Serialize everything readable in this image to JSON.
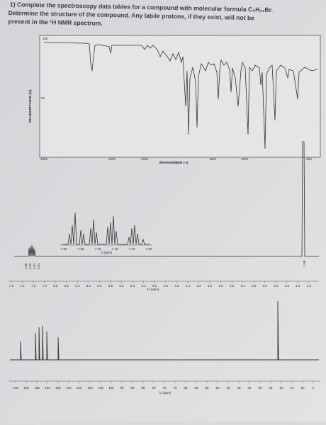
{
  "question": {
    "lines": [
      "1) Complete the spectroscopy data tables for a compound with molecular formula C₉H₁₁Br.",
      "Determine the structure of the compound. Any labile protons, if they exist, will not be",
      "present in the ¹H NMR spectrum."
    ]
  },
  "ir": {
    "y_label": "TRANSMITTANCE (%)",
    "y_top": "100",
    "y_mid": "50",
    "x_label": "WAVENUMBER (-1)",
    "x_ticks": [
      "4000",
      "3000",
      "2000",
      "1500",
      "1000",
      "500"
    ]
  },
  "hnmr": {
    "inset_ticks": [
      "7.30",
      "7.25",
      "7.20",
      "7.15",
      "7.10",
      "7.05"
    ],
    "inset_label": "f1 (ppm)",
    "integrals": [
      "1.00",
      "1.02",
      "1.01",
      "1.01"
    ],
    "integral_right": "2.96",
    "x_ticks": [
      "7.6",
      "7.4",
      "7.2",
      "7.0",
      "6.8",
      "6.6",
      "6.4",
      "6.2",
      "6.0",
      "5.8",
      "5.6",
      "5.4",
      "5.2",
      "5.0",
      "4.8",
      "4.6",
      "4.4",
      "4.2",
      "4.0",
      "3.8",
      "3.6",
      "3.4",
      "3.2",
      "3.0",
      "2.8",
      "2.6",
      "2.4",
      "2.2"
    ],
    "x_label": "f1 (ppm)"
  },
  "cnmr": {
    "x_ticks": [
      "145",
      "140",
      "135",
      "130",
      "125",
      "120",
      "115",
      "110",
      "105",
      "100",
      "95",
      "90",
      "85",
      "80",
      "75",
      "70",
      "65",
      "60",
      "55",
      "50",
      "45",
      "40",
      "35",
      "30",
      "25",
      "20",
      "15",
      "10",
      "5"
    ],
    "x_label": "f1 (ppm)"
  }
}
